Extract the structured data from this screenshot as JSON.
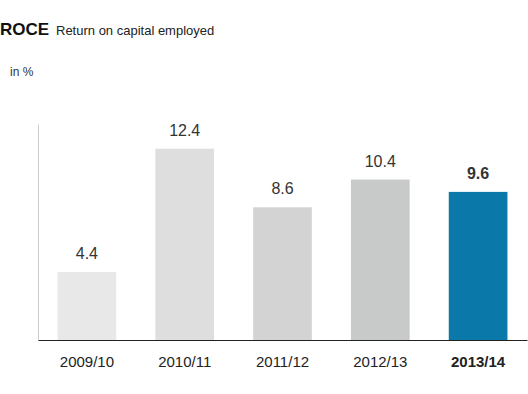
{
  "chart_data": {
    "type": "bar",
    "title": "ROCE",
    "subtitle": "Return on capital employed",
    "y_label": "in %",
    "categories": [
      "2009/10",
      "2010/11",
      "2011/12",
      "2012/13",
      "2013/14"
    ],
    "values": [
      4.4,
      12.4,
      8.6,
      10.4,
      9.6
    ],
    "colors": [
      "#e8e8e8",
      "#dedede",
      "#d3d3d3",
      "#c8c9c9",
      "#0a78a8"
    ],
    "ylim": [
      0,
      14
    ],
    "data_labels": true,
    "tick_labels": "x",
    "grid": false
  }
}
